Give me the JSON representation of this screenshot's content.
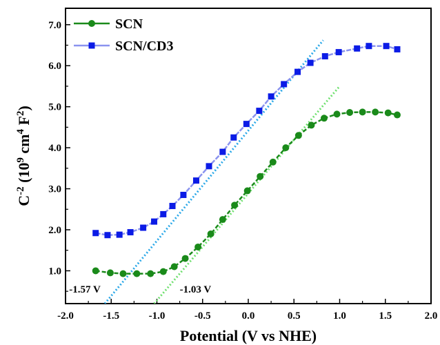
{
  "chart_data": {
    "type": "line",
    "title": "",
    "xlabel": "Potential (V vs NHE)",
    "ylabel": {
      "main": "C",
      "sup1": "-2",
      "mid": " (10",
      "sup2": "9",
      "mid2": " cm",
      "sup3": "4",
      "mid3": " F",
      "sup4": "2",
      "end": ")"
    },
    "xlim": [
      -2.0,
      2.0
    ],
    "ylim": [
      0.2,
      7.4
    ],
    "xticks": [
      -2.0,
      -1.5,
      -1.0,
      -0.5,
      0.0,
      0.5,
      1.0,
      1.5,
      2.0
    ],
    "xtick_labels": [
      "-2.0",
      "-1.5",
      "-1.0",
      "-0.5",
      "0.0",
      "0.5",
      "1.0",
      "1.5",
      "2.0"
    ],
    "yticks": [
      1.0,
      2.0,
      3.0,
      4.0,
      5.0,
      6.0,
      7.0
    ],
    "ytick_labels": [
      "1.0",
      "2.0",
      "3.0",
      "4.0",
      "5.0",
      "6.0",
      "7.0"
    ],
    "grid": false,
    "legend_position": "top-left",
    "series": [
      {
        "name": "SCN",
        "color": "#1a8a1a",
        "marker": "circle",
        "x": [
          -1.67,
          -1.51,
          -1.37,
          -1.22,
          -1.07,
          -0.93,
          -0.81,
          -0.69,
          -0.55,
          -0.41,
          -0.28,
          -0.15,
          -0.01,
          0.13,
          0.27,
          0.41,
          0.55,
          0.69,
          0.83,
          0.97,
          1.11,
          1.25,
          1.39,
          1.53,
          1.63
        ],
        "y": [
          1.0,
          0.95,
          0.93,
          0.93,
          0.93,
          0.98,
          1.1,
          1.3,
          1.58,
          1.9,
          2.25,
          2.6,
          2.95,
          3.3,
          3.65,
          4.0,
          4.3,
          4.55,
          4.72,
          4.82,
          4.86,
          4.87,
          4.87,
          4.85,
          4.8
        ]
      },
      {
        "name": "SCN/CD3",
        "color": "#0b1be6",
        "marker": "square",
        "x": [
          -1.67,
          -1.54,
          -1.41,
          -1.29,
          -1.15,
          -1.03,
          -0.93,
          -0.83,
          -0.71,
          -0.57,
          -0.43,
          -0.28,
          -0.16,
          -0.02,
          0.12,
          0.25,
          0.39,
          0.54,
          0.68,
          0.84,
          0.99,
          1.19,
          1.32,
          1.51,
          1.63
        ],
        "y": [
          1.92,
          1.87,
          1.88,
          1.94,
          2.05,
          2.2,
          2.38,
          2.58,
          2.85,
          3.2,
          3.55,
          3.9,
          4.25,
          4.58,
          4.9,
          5.25,
          5.55,
          5.85,
          6.07,
          6.23,
          6.33,
          6.42,
          6.48,
          6.48,
          6.4
        ]
      }
    ],
    "fit_lines": [
      {
        "color": "#2aa8e8",
        "x": [
          -1.57,
          0.82
        ],
        "y": [
          0.2,
          6.62
        ]
      },
      {
        "color": "#6fe06f",
        "x": [
          -1.03,
          1.0
        ],
        "y": [
          0.2,
          5.5
        ]
      }
    ],
    "annotations": [
      {
        "text": "-1.57 V",
        "x": -1.96,
        "y": 0.55
      },
      {
        "text": "-1.03 V",
        "x": -0.75,
        "y": 0.55
      }
    ]
  }
}
